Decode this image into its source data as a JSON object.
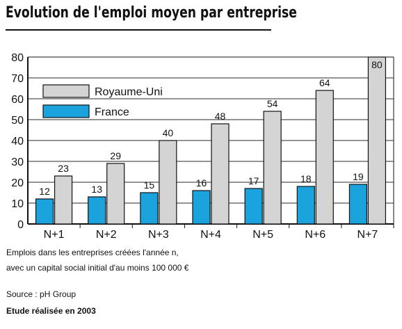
{
  "header": {
    "title": "Evolution de l'emploi moyen par entreprise"
  },
  "chart_data": {
    "type": "bar",
    "categories": [
      "N+1",
      "N+2",
      "N+3",
      "N+4",
      "N+5",
      "N+6",
      "N+7"
    ],
    "series": [
      {
        "name": "France",
        "values": [
          12,
          13,
          15,
          16,
          17,
          18,
          19
        ],
        "color": "#1aa3dc"
      },
      {
        "name": "Royaume-Uni",
        "values": [
          23,
          29,
          40,
          48,
          54,
          64,
          80
        ],
        "color": "#d4d4d4"
      }
    ],
    "legend_order": [
      "Royaume-Uni",
      "France"
    ],
    "legend_position": "top-left",
    "yticks": [
      0,
      10,
      20,
      30,
      40,
      50,
      60,
      70,
      80
    ],
    "ylim": [
      0,
      80
    ],
    "grid": true,
    "title": "",
    "xlabel": "",
    "ylabel": ""
  },
  "footer": {
    "note_line1": "Emplois dans les entreprises créées l'année n,",
    "note_line2": "avec un capital social initial d'au moins 100 000 €",
    "source": "Source : pH Group",
    "study": "Etude réalisée en 2003"
  }
}
